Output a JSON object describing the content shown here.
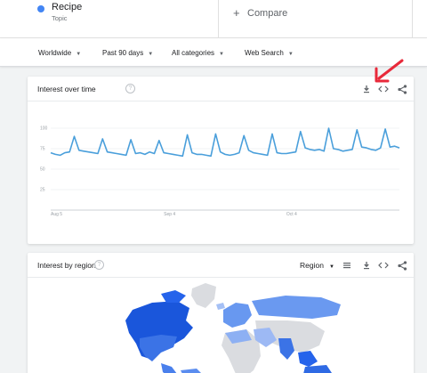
{
  "term": {
    "name": "Recipe",
    "type": "Topic",
    "color": "#4285f4"
  },
  "compare": {
    "plus": "+",
    "label": "Compare"
  },
  "filters": [
    {
      "label": "Worldwide"
    },
    {
      "label": "Past 90 days"
    },
    {
      "label": "All categories"
    },
    {
      "label": "Web Search"
    }
  ],
  "interest_over_time": {
    "title": "Interest over time",
    "help": "?",
    "icons": [
      "download-icon",
      "embed-icon",
      "share-icon"
    ]
  },
  "interest_by_region": {
    "title": "Interest by region",
    "help": "?",
    "region_select": "Region",
    "icons": [
      "list-view-icon",
      "download-icon",
      "embed-icon",
      "share-icon"
    ]
  },
  "annotation": {
    "arrow_color": "#e8293a"
  },
  "chart_data": {
    "type": "line",
    "series": [
      {
        "color": "#4a9fdb",
        "values": [
          70,
          68,
          67,
          70,
          71,
          90,
          73,
          72,
          71,
          70,
          69,
          87,
          71,
          70,
          69,
          68,
          67,
          86,
          69,
          70,
          68,
          71,
          69,
          85,
          70,
          69,
          68,
          67,
          66,
          92,
          70,
          68,
          68,
          67,
          66,
          93,
          71,
          68,
          67,
          68,
          70,
          91,
          73,
          70,
          69,
          68,
          67,
          93,
          70,
          69,
          69,
          70,
          71,
          96,
          76,
          74,
          73,
          74,
          72,
          100,
          75,
          74,
          72,
          73,
          74,
          98,
          77,
          76,
          74,
          73,
          76,
          99,
          77,
          78,
          76
        ]
      }
    ],
    "y_ticks": [
      100,
      75,
      50,
      25
    ],
    "x_ticks": [
      {
        "label": "Aug 5",
        "index": 0
      },
      {
        "label": "Sep 4",
        "index": 24
      },
      {
        "label": "Oct 4",
        "index": 50
      }
    ],
    "ylim": [
      0,
      100
    ],
    "grid": true
  }
}
